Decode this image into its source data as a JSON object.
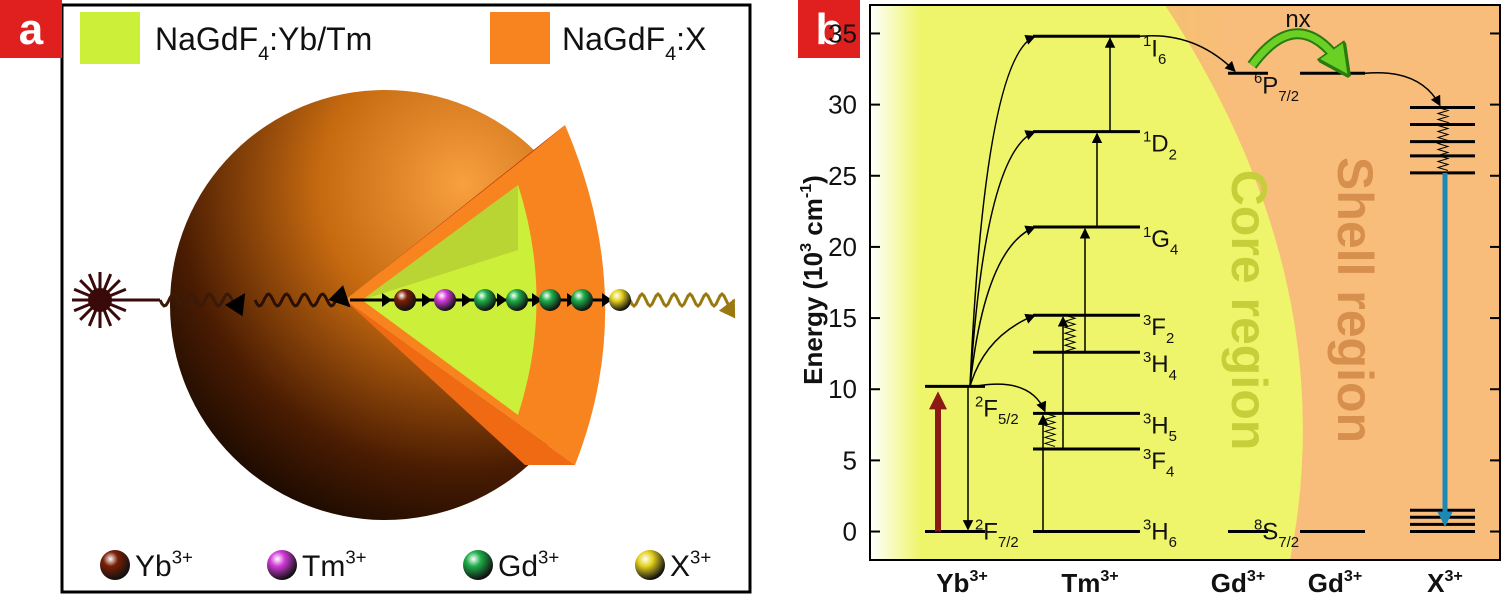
{
  "panel_a": {
    "label": "a",
    "legend": [
      {
        "parts": [
          {
            "text": "NaGdF"
          },
          {
            "text": "4",
            "kind": "sub"
          },
          {
            "text": ":Yb/Tm"
          }
        ],
        "color": "#ccf03a"
      },
      {
        "parts": [
          {
            "text": "NaGdF"
          },
          {
            "text": "4",
            "kind": "sub"
          },
          {
            "text": ":X"
          }
        ],
        "color": "#f7841e"
      }
    ],
    "ions": [
      {
        "name": "Yb",
        "charge": "3+",
        "color": "#7a1f05"
      },
      {
        "name": "Tm",
        "charge": "3+",
        "color": "#d23ad8"
      },
      {
        "name": "Gd",
        "charge": "3+",
        "color": "#1fae4a"
      },
      {
        "name": "X",
        "charge": "3+",
        "color": "#e5d21e"
      }
    ]
  },
  "panel_b": {
    "label": "b",
    "axis_label": [
      {
        "text": "Energy (10"
      },
      {
        "text": "3",
        "kind": "sup"
      },
      {
        "text": " cm"
      },
      {
        "text": "-1",
        "kind": "sup"
      },
      {
        "text": ")"
      }
    ],
    "ylim": [
      -2,
      37
    ],
    "yticks": [
      0,
      5,
      10,
      15,
      20,
      25,
      30,
      35
    ],
    "core_region": "Core region",
    "shell_region": "Shell region",
    "energy_transfer": "nx",
    "ions": [
      {
        "name": "Yb",
        "charge": "3+",
        "levels": [
          {
            "value": 0,
            "term": {
              "sup": "2",
              "main": "F",
              "sub": "7/2"
            }
          },
          {
            "value": 10.2,
            "term": {
              "sup": "2",
              "main": "F",
              "sub": "5/2"
            }
          }
        ]
      },
      {
        "name": "Tm",
        "charge": "3+",
        "levels": [
          {
            "value": 0,
            "term": {
              "sup": "3",
              "main": "H",
              "sub": "6"
            }
          },
          {
            "value": 5.8,
            "term": {
              "sup": "3",
              "main": "F",
              "sub": "4"
            }
          },
          {
            "value": 8.3,
            "term": {
              "sup": "3",
              "main": "H",
              "sub": "5"
            }
          },
          {
            "value": 12.6,
            "term": {
              "sup": "3",
              "main": "H",
              "sub": "4"
            }
          },
          {
            "value": 15.2,
            "term": {
              "sup": "3",
              "main": "F",
              "sub": "2"
            }
          },
          {
            "value": 21.4,
            "term": {
              "sup": "1",
              "main": "G",
              "sub": "4"
            }
          },
          {
            "value": 28.1,
            "term": {
              "sup": "1",
              "main": "D",
              "sub": "2"
            }
          },
          {
            "value": 34.8,
            "term": {
              "sup": "1",
              "main": "I",
              "sub": "6"
            }
          }
        ]
      },
      {
        "name": "Gd",
        "charge": "3+",
        "levels": [
          {
            "value": 0,
            "term": {
              "sup": "8",
              "main": "S",
              "sub": "7/2"
            }
          },
          {
            "value": 32.2,
            "term": {
              "sup": "6",
              "main": "P",
              "sub": "7/2"
            }
          }
        ]
      },
      {
        "name": "Gd",
        "charge": "3+",
        "levels": [
          {
            "value": 0
          },
          {
            "value": 32.2
          }
        ]
      },
      {
        "name": "X",
        "charge": "3+",
        "levels": [
          {
            "value": 0
          },
          {
            "value": 0.5
          },
          {
            "value": 1.0
          },
          {
            "value": 1.5
          },
          {
            "value": 25.2
          },
          {
            "value": 26.4
          },
          {
            "value": 27.4
          },
          {
            "value": 28.6
          },
          {
            "value": 29.8
          }
        ]
      }
    ]
  }
}
